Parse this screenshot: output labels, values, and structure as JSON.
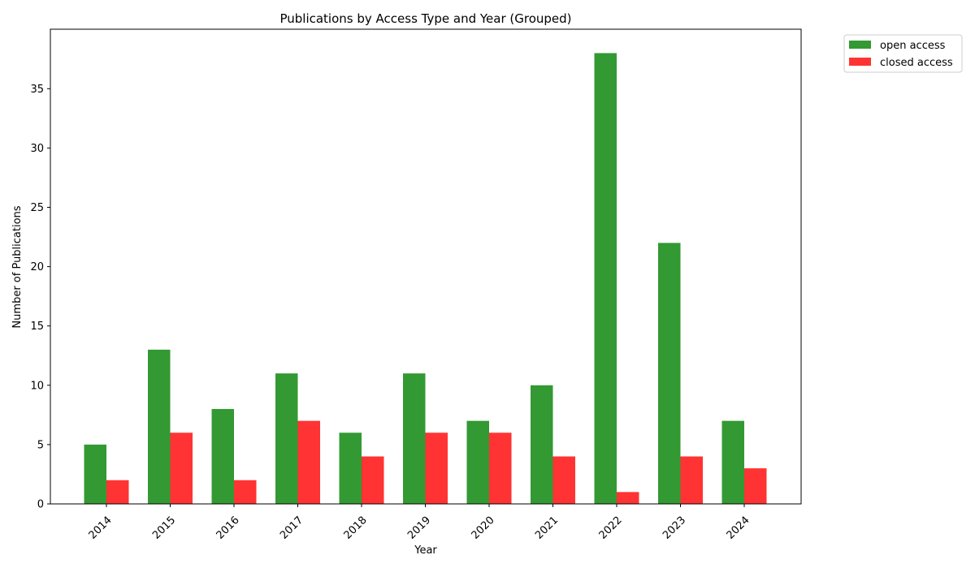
{
  "chart_data": {
    "type": "bar",
    "title": "Publications by Access Type and Year (Grouped)",
    "xlabel": "Year",
    "ylabel": "Number of Publications",
    "categories": [
      "2014",
      "2015",
      "2016",
      "2017",
      "2018",
      "2019",
      "2020",
      "2021",
      "2022",
      "2023",
      "2024"
    ],
    "series": [
      {
        "name": "open access",
        "color": "#339933",
        "values": [
          5,
          13,
          8,
          11,
          6,
          11,
          7,
          10,
          38,
          22,
          7
        ]
      },
      {
        "name": "closed access",
        "color": "#ff3333",
        "values": [
          2,
          6,
          2,
          7,
          4,
          6,
          6,
          4,
          1,
          4,
          3
        ]
      }
    ],
    "ylim": [
      0,
      40
    ],
    "yticks": [
      0,
      5,
      10,
      15,
      20,
      25,
      30,
      35
    ],
    "grid": false,
    "legend_position": "outside-top-right"
  }
}
